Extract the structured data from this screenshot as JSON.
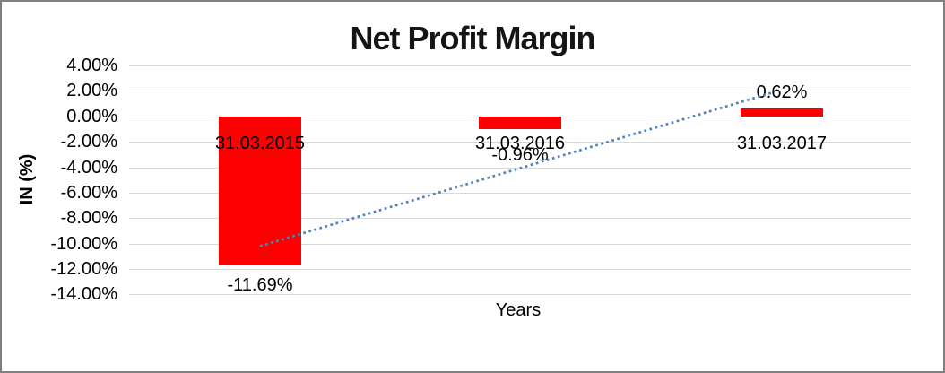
{
  "window": {
    "background": "#ffffff",
    "border_color": "#808080"
  },
  "chart_data": {
    "type": "bar",
    "title": "Net Profit Margin",
    "xlabel": "Years",
    "ylabel": "IN (%)",
    "categories": [
      "31.03.2015",
      "31.03.2016",
      "31.03.2017"
    ],
    "values": [
      -11.69,
      -0.96,
      0.62
    ],
    "data_labels": [
      "-11.69%",
      "-0.96%",
      "0.62%"
    ],
    "y_ticks": [
      "4.00%",
      "2.00%",
      "0.00%",
      "-2.00%",
      "-4.00%",
      "-6.00%",
      "-8.00%",
      "-10.00%",
      "-12.00%",
      "-14.00%"
    ],
    "y_tick_values": [
      4,
      2,
      0,
      -2,
      -4,
      -6,
      -8,
      -10,
      -12,
      -14
    ],
    "ylim": [
      -14,
      4
    ],
    "grid": true,
    "legend": "none",
    "bar_color": "#ff0000",
    "gridline_color": "#d9d9d9",
    "trendline": {
      "type": "linear",
      "style": "dotted",
      "color": "#4f81bd",
      "start_value": -10.2,
      "end_value": 1.9
    }
  }
}
